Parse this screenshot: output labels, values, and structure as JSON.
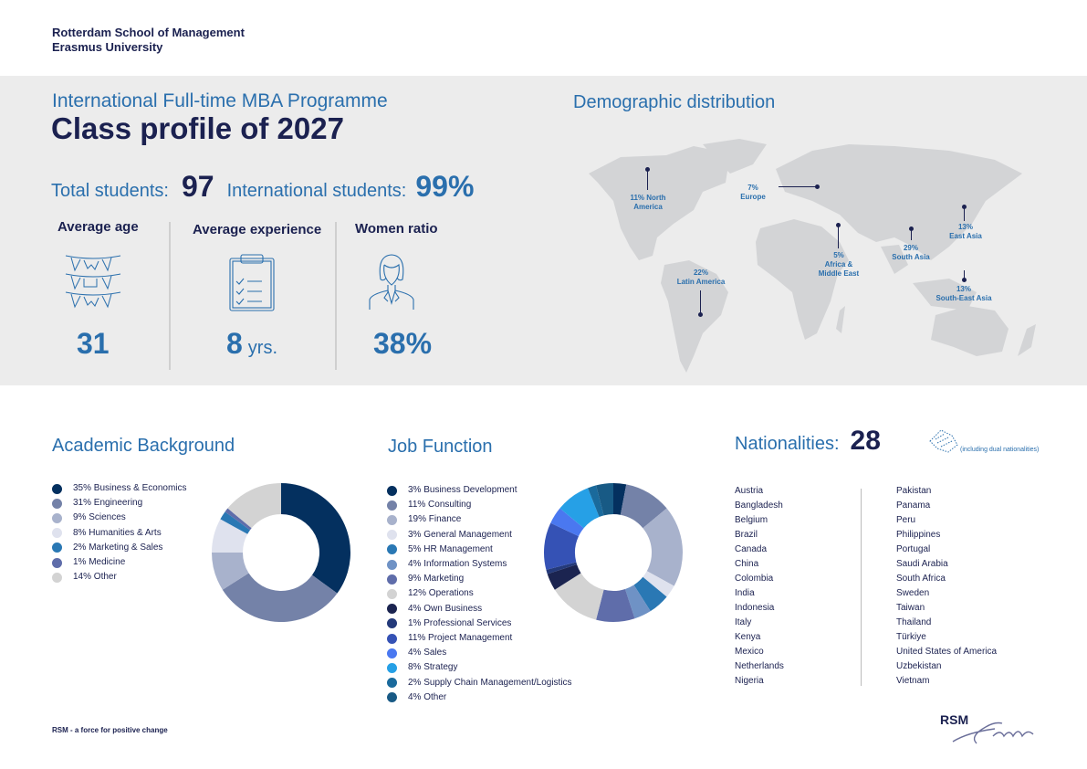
{
  "org": {
    "line1": "Rotterdam School of Management",
    "line2": "Erasmus University"
  },
  "header": {
    "subtitle": "International Full-time MBA Programme",
    "title": "Class profile of 2027"
  },
  "stats": {
    "total_label": "Total students:",
    "total_value": "97",
    "intl_label": "International students:",
    "intl_value": "99%"
  },
  "kpis": [
    {
      "label": "Average age",
      "value": "31",
      "unit": "",
      "icon": "bunting-icon"
    },
    {
      "label": "Average experience",
      "value": "8",
      "unit": "yrs.",
      "icon": "clipboard-icon"
    },
    {
      "label": "Women ratio",
      "value": "38%",
      "unit": "",
      "icon": "woman-icon"
    }
  ],
  "demographic": {
    "title": "Demographic distribution",
    "regions": [
      {
        "pct": "11% North",
        "name": "America"
      },
      {
        "pct": "7%",
        "name": "Europe"
      },
      {
        "pct": "22%",
        "name": "Latin America"
      },
      {
        "pct": "5%",
        "name": "Africa &",
        "name2": "Middle East"
      },
      {
        "pct": "29%",
        "name": "South Asia"
      },
      {
        "pct": "13%",
        "name": "East Asia"
      },
      {
        "pct": "13%",
        "name": "South-East Asia"
      }
    ]
  },
  "chart_data": [
    {
      "type": "pie",
      "title": "Academic Background",
      "categories": [
        "Business & Economics",
        "Engineering",
        "Sciences",
        "Humanities & Arts",
        "Marketing & Sales",
        "Medicine",
        "Other"
      ],
      "values": [
        35,
        31,
        9,
        8,
        2,
        1,
        14
      ],
      "labels": [
        "35% Business & Economics",
        "31% Engineering",
        "9% Sciences",
        "8% Humanities & Arts",
        "2% Marketing & Sales",
        "1% Medicine",
        "14% Other"
      ],
      "colors": [
        "#04305f",
        "#7482a8",
        "#a8b2cc",
        "#dfe2ee",
        "#2a78b4",
        "#5f6daa",
        "#d3d3d3"
      ]
    },
    {
      "type": "pie",
      "title": "Job Function",
      "categories": [
        "Business Development",
        "Consulting",
        "Finance",
        "General Management",
        "HR Management",
        "Information Systems",
        "Marketing",
        "Operations",
        "Own Business",
        "Professional Services",
        "Project Management",
        "Sales",
        "Strategy",
        "Supply Chain Management/Logistics",
        "Other"
      ],
      "values": [
        3,
        11,
        19,
        3,
        5,
        4,
        9,
        12,
        4,
        1,
        11,
        4,
        8,
        2,
        4
      ],
      "labels": [
        "3% Business Development",
        "11% Consulting",
        "19% Finance",
        "3% General Management",
        "5% HR Management",
        "4% Information Systems",
        "9% Marketing",
        "12% Operations",
        "4% Own Business",
        "1% Professional Services",
        "11% Project Management",
        "4% Sales",
        "8% Strategy",
        "2% Supply Chain Management/Logistics",
        "4% Other"
      ],
      "colors": [
        "#04305f",
        "#7482a8",
        "#a8b2cc",
        "#dfe2ee",
        "#2a78b4",
        "#6f92c5",
        "#5f6daa",
        "#d3d3d3",
        "#1b2450",
        "#243a7a",
        "#3552b5",
        "#4a78f0",
        "#26a0e6",
        "#1a6a9c",
        "#185a85"
      ]
    }
  ],
  "nationalities": {
    "label": "Nationalities:",
    "count": "28",
    "note": "(including dual nationalities)",
    "col1": [
      "Austria",
      "Bangladesh",
      "Belgium",
      "Brazil",
      "Canada",
      "China",
      "Colombia",
      "India",
      "Indonesia",
      "Italy",
      "Kenya",
      "Mexico",
      "Netherlands",
      "Nigeria"
    ],
    "col2": [
      "Pakistan",
      "Panama",
      "Peru",
      "Philippines",
      "Portugal",
      "Saudi Arabia",
      "South Africa",
      "Sweden",
      "Taiwan",
      "Thailand",
      "Türkiye",
      "United States of America",
      "Uzbekistan",
      "Vietnam"
    ]
  },
  "footer": {
    "tagline": "RSM - a force for positive change",
    "logo": "RSM Erasmus"
  }
}
